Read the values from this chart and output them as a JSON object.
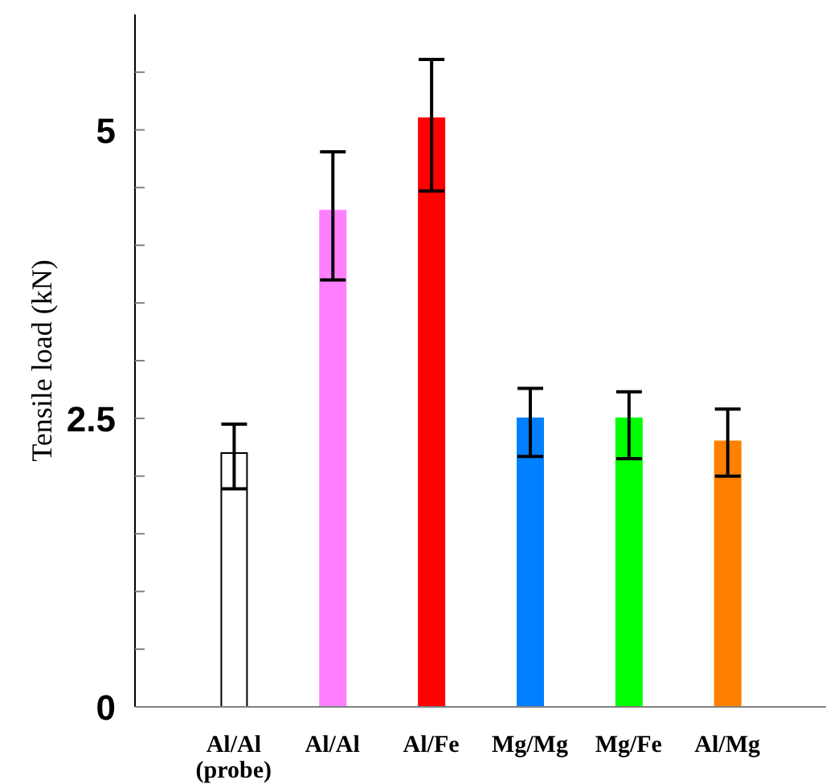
{
  "chart_data": {
    "type": "bar",
    "ylabel": "Tensile load (kN)",
    "categories": [
      "Al/Al (probe)",
      "Al/Al",
      "Al/Fe",
      "Mg/Mg",
      "Mg/Fe",
      "Al/Mg"
    ],
    "values": [
      2.2,
      4.3,
      5.1,
      2.5,
      2.5,
      2.3
    ],
    "colors": [
      "#ffffff",
      "#ff80ff",
      "#ff0000",
      "#0080ff",
      "#00ff00",
      "#ff8000"
    ],
    "errors": [
      [
        1.89,
        2.45
      ],
      [
        3.7,
        4.81
      ],
      [
        4.47,
        5.61
      ],
      [
        2.17,
        2.76
      ],
      [
        2.15,
        2.73
      ],
      [
        2.0,
        2.58
      ]
    ],
    "ylim": [
      0,
      6
    ],
    "yticks": [
      0,
      {
        "value": 0.5,
        "label": null
      },
      {
        "value": 1,
        "label": null
      },
      {
        "value": 1.5,
        "label": null
      },
      {
        "value": 2,
        "label": null
      },
      2.5,
      {
        "value": 3,
        "label": null
      },
      {
        "value": 3.5,
        "label": null
      },
      {
        "value": 4,
        "label": null
      },
      {
        "value": 4.5,
        "label": null
      },
      5,
      {
        "value": 5.5,
        "label": null
      }
    ],
    "grid": false,
    "legend": false
  }
}
